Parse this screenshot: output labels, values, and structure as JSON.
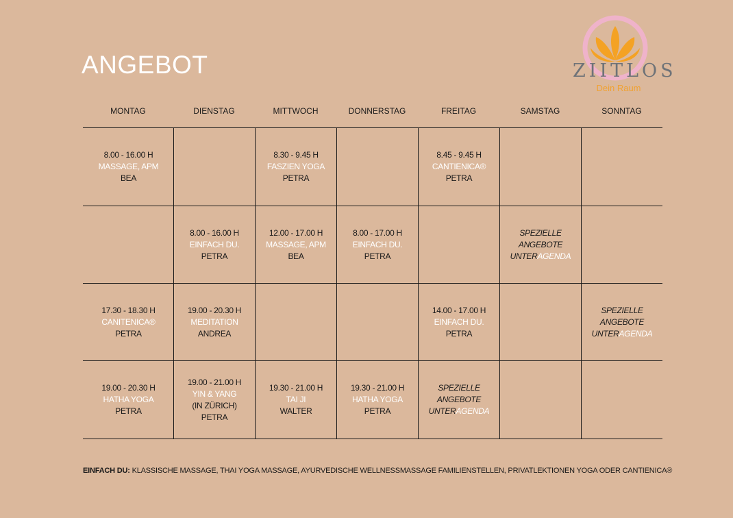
{
  "header": {
    "title": "ANGEBOT"
  },
  "logo": {
    "name": "ZIITLOS",
    "tagline": "Dein Raum"
  },
  "table": {
    "columns": [
      "MONTAG",
      "DIENSTAG",
      "MITTWOCH",
      "DONNERSTAG",
      "FREITAG",
      "SAMSTAG",
      "SONNTAG"
    ],
    "rows": [
      {
        "cells": [
          {
            "lines": [
              [
                {
                  "text": "8.00 - 16.00 H",
                  "color": "#1a1a1a"
                }
              ],
              [
                {
                  "text": "MASSAGE, APM",
                  "color": "#ffffff"
                }
              ],
              [
                {
                  "text": "BEA",
                  "color": "#1a1a1a"
                }
              ]
            ]
          },
          {
            "lines": []
          },
          {
            "lines": [
              [
                {
                  "text": "8.30 - 9.45 H",
                  "color": "#1a1a1a"
                }
              ],
              [
                {
                  "text": "FASZIEN YOGA",
                  "color": "#ffffff"
                }
              ],
              [
                {
                  "text": "PETRA",
                  "color": "#1a1a1a"
                }
              ]
            ]
          },
          {
            "lines": []
          },
          {
            "lines": [
              [
                {
                  "text": "8.45 - 9.45 H",
                  "color": "#1a1a1a"
                }
              ],
              [
                {
                  "text": "CANTIENICA®",
                  "color": "#ffffff"
                }
              ],
              [
                {
                  "text": "PETRA",
                  "color": "#1a1a1a"
                }
              ]
            ]
          },
          {
            "lines": []
          },
          {
            "lines": []
          }
        ]
      },
      {
        "cells": [
          {
            "lines": []
          },
          {
            "lines": [
              [
                {
                  "text": "8.00 - 16.00 H",
                  "color": "#1a1a1a"
                }
              ],
              [
                {
                  "text": "EINFACH DU.",
                  "color": "#ffffff"
                }
              ],
              [
                {
                  "text": "PETRA",
                  "color": "#1a1a1a"
                }
              ]
            ]
          },
          {
            "lines": [
              [
                {
                  "text": "12.00  - 17.00 H",
                  "color": "#1a1a1a"
                }
              ],
              [
                {
                  "text": "MASSAGE, APM",
                  "color": "#ffffff"
                }
              ],
              [
                {
                  "text": "BEA",
                  "color": "#1a1a1a"
                }
              ]
            ]
          },
          {
            "lines": [
              [
                {
                  "text": "8.00 - 17.00 H",
                  "color": "#1a1a1a"
                }
              ],
              [
                {
                  "text": "EINFACH DU.",
                  "color": "#ffffff"
                }
              ],
              [
                {
                  "text": "PETRA",
                  "color": "#1a1a1a"
                }
              ]
            ]
          },
          {
            "lines": []
          },
          {
            "italic": true,
            "lines": [
              [
                {
                  "text": "SPEZIELLE",
                  "color": "#1a1a1a"
                }
              ],
              [
                {
                  "text": "ANGEBOTE",
                  "color": "#1a1a1a"
                }
              ],
              [
                {
                  "text": "UNTER",
                  "color": "#1a1a1a"
                },
                {
                  "text": "AGENDA",
                  "color": "#ffffff"
                }
              ]
            ]
          },
          {
            "lines": []
          }
        ]
      },
      {
        "cells": [
          {
            "lines": [
              [
                {
                  "text": "17.30 - 18.30 H",
                  "color": "#1a1a1a"
                }
              ],
              [
                {
                  "text": "CANITENICA®",
                  "color": "#ffffff"
                }
              ],
              [
                {
                  "text": "PETRA",
                  "color": "#1a1a1a"
                }
              ]
            ]
          },
          {
            "lines": [
              [
                {
                  "text": "19.00 - 20.30 H",
                  "color": "#1a1a1a"
                }
              ],
              [
                {
                  "text": "MEDITATION",
                  "color": "#ffffff"
                }
              ],
              [
                {
                  "text": "ANDREA",
                  "color": "#1a1a1a"
                }
              ]
            ]
          },
          {
            "lines": []
          },
          {
            "lines": []
          },
          {
            "lines": [
              [
                {
                  "text": "14.00 - 17.00 H",
                  "color": "#1a1a1a"
                }
              ],
              [
                {
                  "text": "EINFACH DU.",
                  "color": "#ffffff"
                }
              ],
              [
                {
                  "text": "PETRA",
                  "color": "#1a1a1a"
                }
              ]
            ]
          },
          {
            "lines": []
          },
          {
            "italic": true,
            "lines": [
              [
                {
                  "text": "SPEZIELLE",
                  "color": "#1a1a1a"
                }
              ],
              [
                {
                  "text": "ANGEBOTE",
                  "color": "#1a1a1a"
                }
              ],
              [
                {
                  "text": "UNTER",
                  "color": "#1a1a1a"
                },
                {
                  "text": "AGENDA",
                  "color": "#ffffff"
                }
              ]
            ]
          }
        ]
      },
      {
        "cells": [
          {
            "lines": [
              [
                {
                  "text": "19.00 - 20.30 H",
                  "color": "#1a1a1a"
                }
              ],
              [
                {
                  "text": "HATHA YOGA",
                  "color": "#ffffff"
                }
              ],
              [
                {
                  "text": "PETRA",
                  "color": "#1a1a1a"
                }
              ]
            ]
          },
          {
            "lines": [
              [
                {
                  "text": "19.00 - 21.00 H",
                  "color": "#1a1a1a"
                }
              ],
              [
                {
                  "text": "YIN & YANG",
                  "color": "#ffffff"
                }
              ],
              [
                {
                  "text": "(IN ZÜRICH)",
                  "color": "#1a1a1a"
                }
              ],
              [
                {
                  "text": "PETRA",
                  "color": "#1a1a1a"
                }
              ]
            ]
          },
          {
            "lines": [
              [
                {
                  "text": "19.30 - 21.00 H",
                  "color": "#1a1a1a"
                }
              ],
              [
                {
                  "text": "TAI JI",
                  "color": "#ffffff"
                }
              ],
              [
                {
                  "text": "WALTER",
                  "color": "#1a1a1a"
                }
              ]
            ]
          },
          {
            "lines": [
              [
                {
                  "text": "19.30 - 21.00 H",
                  "color": "#1a1a1a"
                }
              ],
              [
                {
                  "text": "HATHA YOGA",
                  "color": "#ffffff"
                }
              ],
              [
                {
                  "text": "PETRA",
                  "color": "#1a1a1a"
                }
              ]
            ]
          },
          {
            "italic": true,
            "lines": [
              [
                {
                  "text": "SPEZIELLE",
                  "color": "#1a1a1a"
                }
              ],
              [
                {
                  "text": "ANGEBOTE",
                  "color": "#1a1a1a"
                }
              ],
              [
                {
                  "text": "UNTER",
                  "color": "#1a1a1a"
                },
                {
                  "text": "AGENDA",
                  "color": "#ffffff"
                }
              ]
            ]
          },
          {
            "lines": []
          },
          {
            "lines": []
          }
        ]
      }
    ]
  },
  "footer": {
    "label": "EINFACH DU:",
    "text": "KLASSISCHE MASSAGE, THAI YOGA MASSAGE, AYURVEDISCHE WELLNESSMASSAGE FAMILIENSTELLEN, PRIVATLEKTIONEN YOGA ODER CANTIENICA®"
  }
}
